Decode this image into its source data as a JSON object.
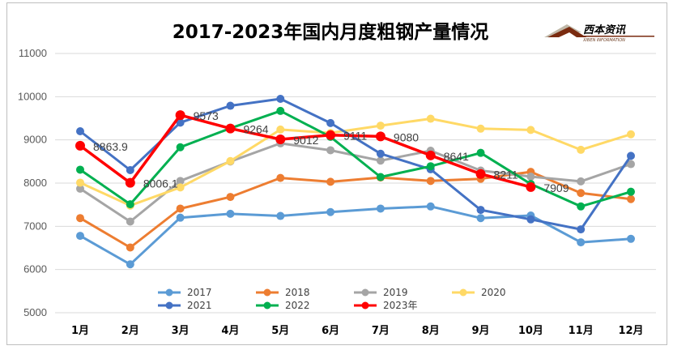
{
  "chart_data": {
    "type": "line",
    "title": "2017-2023年国内月度粗钢产量情况",
    "categories": [
      "1月",
      "2月",
      "3月",
      "4月",
      "5月",
      "6月",
      "7月",
      "8月",
      "9月",
      "10月",
      "11月",
      "12月"
    ],
    "ylim": [
      5000,
      11000
    ],
    "yticks": [
      5000,
      6000,
      7000,
      8000,
      9000,
      10000,
      11000
    ],
    "grid": true,
    "legend_position": "bottom",
    "series": [
      {
        "name": "2017",
        "color": "#5b9bd5",
        "values": [
          6780,
          6120,
          7200,
          7290,
          7240,
          7330,
          7410,
          7460,
          7190,
          7250,
          6630,
          6710
        ]
      },
      {
        "name": "2018",
        "color": "#ed7d31",
        "values": [
          7190,
          6510,
          7410,
          7680,
          8120,
          8030,
          8130,
          8050,
          8100,
          8260,
          7770,
          7630
        ]
      },
      {
        "name": "2019",
        "color": "#a5a5a5",
        "values": [
          7870,
          7110,
          8050,
          8500,
          8920,
          8760,
          8520,
          8750,
          8290,
          8150,
          8040,
          8440
        ]
      },
      {
        "name": "2020",
        "color": "#ffd966",
        "values": [
          8010,
          7480,
          7900,
          8510,
          9240,
          9160,
          9330,
          9490,
          9260,
          9230,
          8770,
          9130
        ]
      },
      {
        "name": "2021",
        "color": "#4472c4",
        "values": [
          9200,
          8300,
          9400,
          9790,
          9950,
          9390,
          8680,
          8320,
          7380,
          7160,
          6930,
          8630
        ]
      },
      {
        "name": "2022",
        "color": "#00b050",
        "values": [
          8310,
          7510,
          8830,
          9270,
          9670,
          9070,
          8140,
          8390,
          8700,
          7980,
          7460,
          7800
        ]
      },
      {
        "name": "2023年",
        "color": "#ff0000",
        "values": [
          8863.9,
          8006.1,
          9573,
          9264,
          9012,
          9111,
          9080,
          8641,
          8211,
          7909,
          null,
          null
        ]
      }
    ],
    "data_labels": {
      "series": "2023年",
      "labels": [
        "8863.9",
        "8006.1",
        "9573",
        "9264",
        "9012",
        "9111",
        "9080",
        "8641",
        "8211",
        "7909"
      ]
    }
  },
  "logo": {
    "name": "西本资讯",
    "subtitle": "XIBEN INFORMATION",
    "accent_color": "#7a2b10"
  }
}
